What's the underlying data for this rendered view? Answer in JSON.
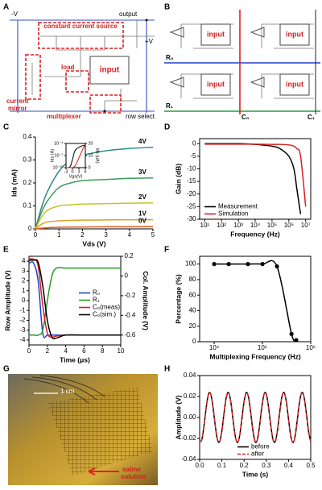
{
  "schematic_a": {
    "panel": "A",
    "minus_v": "-V",
    "output": "output",
    "current_source": "constant current source",
    "plus_v": "+V",
    "input": "input",
    "load": "load",
    "current_mirror": [
      "current",
      "mirror"
    ],
    "multiplexer": "multiplexer",
    "row_select": "row select"
  },
  "array_b": {
    "panel": "B",
    "inputs": [
      "input",
      "input",
      "input",
      "input"
    ],
    "rows": [
      "R₀",
      "R₁"
    ],
    "columns": [
      "C₀",
      "C₁"
    ]
  },
  "photo_g": {
    "panel": "G",
    "scale": "1 cm",
    "label": [
      "saline",
      "solution"
    ]
  },
  "chart_data": [
    {
      "type": "line",
      "panel": "C",
      "xlabel": "Vds (V)",
      "ylabel": "Ids (mA)",
      "x": [
        0,
        0.25,
        0.5,
        1,
        1.5,
        2,
        3,
        4,
        5
      ],
      "xlim": [
        0,
        5
      ],
      "xticks": [
        0,
        1,
        2,
        3,
        4,
        5
      ],
      "ylim": [
        0,
        0.4
      ],
      "yticks": [
        0,
        0.1,
        0.2,
        0.3,
        0.4
      ],
      "legend": "curve-end",
      "series": [
        {
          "name": "4V",
          "color": "#2b8a8c",
          "values": [
            0,
            0.09,
            0.16,
            0.25,
            0.3,
            0.32,
            0.34,
            0.35,
            0.355
          ]
        },
        {
          "name": "3V",
          "color": "#3c9c5c",
          "values": [
            0,
            0.07,
            0.12,
            0.18,
            0.2,
            0.21,
            0.215,
            0.22,
            0.222
          ]
        },
        {
          "name": "2V",
          "color": "#c4c428",
          "values": [
            0,
            0.05,
            0.08,
            0.1,
            0.105,
            0.108,
            0.11,
            0.112,
            0.113
          ]
        },
        {
          "name": "1V",
          "color": "#e0a020",
          "values": [
            0,
            0.02,
            0.03,
            0.035,
            0.037,
            0.038,
            0.039,
            0.04,
            0.04
          ]
        },
        {
          "name": "0V",
          "color": "#e05a20",
          "values": [
            0,
            0.003,
            0.005,
            0.007,
            0.008,
            0.008,
            0.009,
            0.009,
            0.01
          ]
        }
      ]
    },
    {
      "type": "line",
      "xlabel": "Vgs(V)",
      "ylabel": "Ids (A)",
      "y2label": "Ids (μA)",
      "ylog": true,
      "x": [
        -3,
        -2,
        -1,
        0,
        1,
        2,
        3,
        4,
        5,
        6
      ],
      "xlim": [
        -3,
        6
      ],
      "xticks": [
        -3,
        0,
        3,
        6
      ],
      "ylim": [
        1e-10,
        0.0001
      ],
      "yticks": [
        {
          "value": 0.0001,
          "label": "10⁻⁴"
        },
        {
          "value": 1e-07,
          "label": "10⁻⁷"
        },
        {
          "value": 1e-10,
          "label": "10⁻¹⁰"
        }
      ],
      "y2lim": [
        0,
        20
      ],
      "y2ticks": [
        0,
        10,
        20
      ],
      "frame": true,
      "series": [
        {
          "color": "#000000",
          "values": [
            1e-10,
            1e-10,
            2e-10,
            1e-08,
            1e-06,
            5e-06,
            1e-05,
            2e-05,
            3e-05,
            4e-05
          ]
        },
        {
          "color": "#d62020",
          "axis": "y2",
          "values": [
            0,
            0,
            0,
            0,
            1,
            4,
            8,
            12,
            16,
            19
          ]
        }
      ]
    },
    {
      "type": "line",
      "panel": "D",
      "xlabel": "Frequency (Hz)",
      "ylabel": "Gain (dB)",
      "xlog": true,
      "frame": true,
      "x": [
        10,
        100,
        1000,
        10000,
        100000,
        300000,
        1000000,
        2000000,
        3000000,
        5000000,
        10000000
      ],
      "xlim": [
        5,
        20000000
      ],
      "xticks": [
        {
          "value": 10,
          "label": "10¹"
        },
        {
          "value": 100,
          "label": "10²"
        },
        {
          "value": 1000,
          "label": "10³"
        },
        {
          "value": 10000,
          "label": "10⁴"
        },
        {
          "value": 100000,
          "label": "10⁵"
        },
        {
          "value": 1000000,
          "label": "10⁶"
        },
        {
          "value": 10000000,
          "label": "10⁷"
        }
      ],
      "ylim": [
        -30,
        2
      ],
      "yticks": [
        -30,
        -25,
        -20,
        -15,
        -10,
        -5,
        0
      ],
      "legend": "lower left",
      "series": [
        {
          "name": "Measurement",
          "color": "#000000",
          "values": [
            0,
            0,
            0,
            -0.3,
            -1,
            -2,
            -5,
            -10,
            -18,
            -28,
            null
          ]
        },
        {
          "name": "Simulation",
          "color": "#d62020",
          "values": [
            -0.2,
            -0.2,
            -0.2,
            -0.2,
            -0.3,
            -0.3,
            -0.5,
            -1,
            -2,
            -5,
            -25
          ]
        }
      ]
    },
    {
      "type": "line",
      "panel": "E",
      "xlabel": "Time (μs)",
      "ylabel": "Row Amplitude (V)",
      "y2label": "Col. Amplitude (V)",
      "frame": true,
      "x": [
        0,
        0.5,
        1,
        1.5,
        2,
        2.5,
        3,
        4,
        6,
        8,
        10
      ],
      "xlim": [
        0,
        10
      ],
      "xticks": [
        0,
        2,
        4,
        6,
        8,
        10
      ],
      "ylim": [
        -4.5,
        4.5
      ],
      "yticks": [
        -4,
        -3,
        -2,
        -1,
        0,
        1,
        2,
        3,
        4
      ],
      "y2lim": [
        -0.7,
        0.2
      ],
      "y2ticks": [
        -0.6,
        -0.4,
        -0.2,
        0,
        0.2
      ],
      "legend": "center right",
      "series": [
        {
          "name": "R₀",
          "color": "#1f3fcf",
          "values": [
            3.8,
            3.8,
            2,
            -3.3,
            -3.5,
            -3.5,
            -3.5,
            -3.5,
            -3.5,
            -3.5,
            -3.5
          ]
        },
        {
          "name": "R₁",
          "color": "#2a9a2a",
          "values": [
            -3.5,
            -3.5,
            -3.5,
            -3,
            0,
            2.5,
            3.3,
            3.3,
            3.3,
            3.3,
            3.3
          ]
        },
        {
          "name": "C₀(meas)",
          "color": "#d62020",
          "axis": "y2",
          "values": [
            0.17,
            0.17,
            0.1,
            -0.3,
            -0.58,
            -0.62,
            -0.61,
            -0.6,
            -0.6,
            -0.6,
            -0.6
          ]
        },
        {
          "name": "C₀(sim.)",
          "color": "#000000",
          "axis": "y2",
          "values": [
            0.16,
            0.16,
            0.14,
            -0.1,
            -0.45,
            -0.62,
            -0.63,
            -0.6,
            -0.6,
            -0.6,
            -0.6
          ]
        }
      ]
    },
    {
      "type": "line",
      "panel": "F",
      "xlabel": "Multiplexing Frequency (Hz)",
      "ylabel": "Percentage (%)",
      "xlog": true,
      "frame": true,
      "marker": "circle",
      "x": [
        10000,
        20000,
        50000,
        100000,
        200000,
        400000,
        500000
      ],
      "xlim": [
        5000,
        1000000
      ],
      "xticks": [
        {
          "value": 10000,
          "label": "10⁴"
        },
        {
          "value": 100000,
          "label": "10⁵"
        },
        {
          "value": 1000000,
          "label": "10⁶"
        }
      ],
      "ylim": [
        0,
        110
      ],
      "yticks": [
        0,
        20,
        40,
        60,
        80,
        100
      ],
      "series": [
        {
          "color": "#000000",
          "values": [
            100,
            100,
            100,
            100,
            97,
            10,
            2
          ]
        }
      ]
    },
    {
      "type": "line",
      "panel": "H",
      "xlabel": "Time (s)",
      "ylabel": "Amplitude (V)",
      "frame": true,
      "x": [
        0,
        0.01,
        0.02,
        0.03,
        0.04,
        0.05,
        0.06,
        0.07,
        0.08,
        0.09,
        0.1,
        0.11,
        0.12,
        0.13,
        0.14,
        0.15,
        0.16,
        0.17,
        0.18,
        0.19,
        0.2,
        0.21,
        0.22,
        0.23,
        0.24,
        0.25,
        0.26,
        0.27,
        0.28,
        0.29,
        0.3,
        0.31,
        0.32,
        0.33,
        0.34,
        0.35,
        0.36,
        0.37,
        0.38,
        0.39,
        0.4,
        0.41,
        0.42,
        0.43,
        0.44,
        0.45,
        0.46,
        0.47,
        0.48,
        0.49,
        0.5
      ],
      "xlim": [
        0,
        0.5
      ],
      "xticks": [
        {
          "value": 0,
          "label": "0.0"
        },
        0.1,
        0.2,
        0.3,
        0.4,
        0.5
      ],
      "ylim": [
        -0.04,
        0.04
      ],
      "yticks": [
        -0.04,
        -0.02,
        {
          "value": 0,
          "label": "0.00"
        },
        0.02,
        0.04
      ],
      "legend": "lower center",
      "series": [
        {
          "name": "before",
          "color": "#000000",
          "values": [
            -0.0232,
            -0.021,
            -0.0074,
            0.0102,
            0.0223,
            0.0223,
            0.0102,
            -0.0074,
            -0.021,
            -0.0232,
            -0.0129,
            0.0045,
            0.0194,
            0.0238,
            0.0153,
            -0.0015,
            -0.0175,
            -0.024,
            -0.0175,
            -0.0015,
            0.0153,
            0.0238,
            0.0194,
            0.0045,
            -0.0129,
            -0.0232,
            -0.021,
            -0.0074,
            0.0102,
            0.0223,
            0.0223,
            0.0102,
            -0.0074,
            -0.021,
            -0.0232,
            -0.0129,
            0.0045,
            0.0194,
            0.0238,
            0.0153,
            -0.0015,
            -0.0175,
            -0.024,
            -0.0175,
            -0.0015,
            0.0153,
            0.0238,
            0.0194,
            0.0045,
            -0.0129,
            -0.0232
          ]
        },
        {
          "name": "after",
          "color": "#e02020",
          "linestyle": "dashed",
          "values": [
            -0.0232,
            -0.021,
            -0.0074,
            0.0102,
            0.0223,
            0.0223,
            0.0102,
            -0.0074,
            -0.021,
            -0.0232,
            -0.0129,
            0.0045,
            0.0194,
            0.0238,
            0.0153,
            -0.0015,
            -0.0175,
            -0.024,
            -0.0175,
            -0.0015,
            0.0153,
            0.0238,
            0.0194,
            0.0045,
            -0.0129,
            -0.0232,
            -0.021,
            -0.0074,
            0.0102,
            0.0223,
            0.0223,
            0.0102,
            -0.0074,
            -0.021,
            -0.0232,
            -0.0129,
            0.0045,
            0.0194,
            0.0238,
            0.0153,
            -0.0015,
            -0.0175,
            -0.024,
            -0.0175,
            -0.0015,
            0.0153,
            0.0238,
            0.0194,
            0.0045,
            -0.0129,
            -0.0232
          ]
        }
      ]
    }
  ]
}
